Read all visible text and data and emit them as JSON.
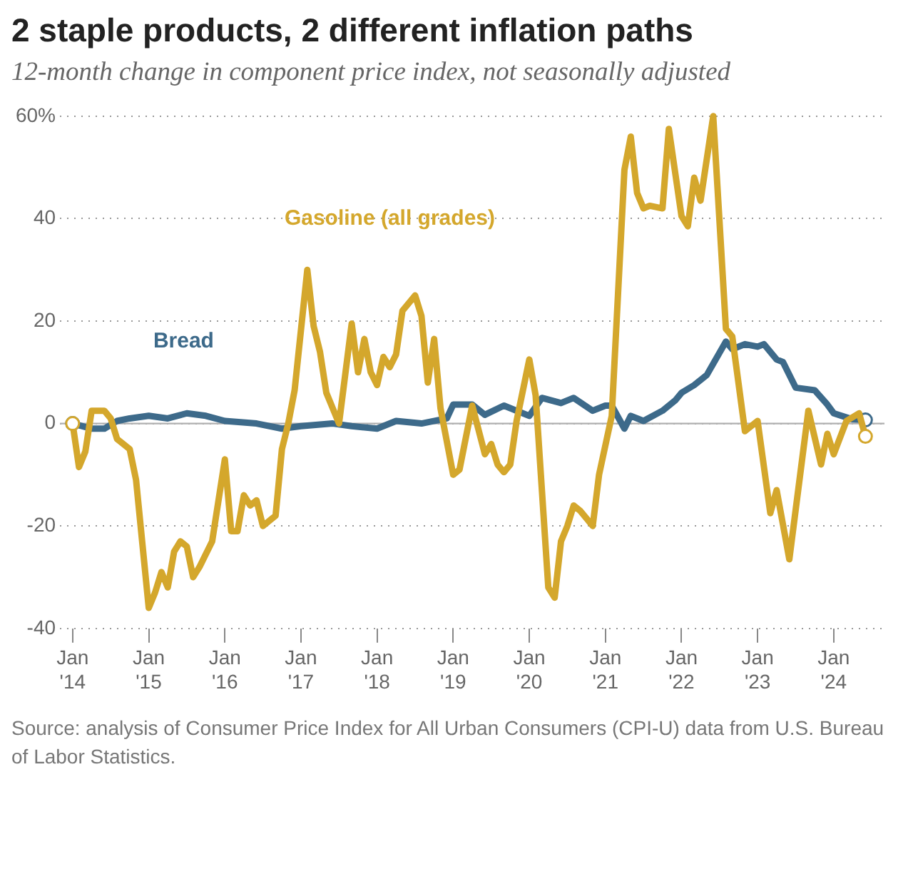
{
  "chart_data": {
    "type": "line",
    "title": "2 staple products, 2 different inflation paths",
    "subtitle": "12-month change in component price index, not seasonally adjusted",
    "annotations": [
      "Source: analysis of Consumer Price Index for All Urban Consumers (CPI-U) data from U.S. Bureau of Labor Statistics."
    ],
    "xlim": [
      "2013-11",
      "2024-09"
    ],
    "xticks": [
      {
        "value": "2014-01",
        "label": "Jan '14"
      },
      {
        "value": "2015-01",
        "label": "Jan '15"
      },
      {
        "value": "2016-01",
        "label": "Jan '16"
      },
      {
        "value": "2017-01",
        "label": "Jan '17"
      },
      {
        "value": "2018-01",
        "label": "Jan '18"
      },
      {
        "value": "2019-01",
        "label": "Jan '19"
      },
      {
        "value": "2020-01",
        "label": "Jan '20"
      },
      {
        "value": "2021-01",
        "label": "Jan '21"
      },
      {
        "value": "2022-01",
        "label": "Jan '22"
      },
      {
        "value": "2023-01",
        "label": "Jan '23"
      },
      {
        "value": "2024-01",
        "label": "Jan '24"
      }
    ],
    "ylim": [
      -40,
      60
    ],
    "yticks": [
      -40,
      -20,
      0,
      20,
      40,
      {
        "value": 60,
        "label": "60%"
      }
    ],
    "grid": "y",
    "legend": false,
    "line_style": "solid",
    "ref_lines": [
      {
        "axis": "y",
        "value": 0,
        "color": "#b0b0b0"
      }
    ],
    "series": [
      {
        "name": "Gasoline (all grades)",
        "color": "#d4a72c",
        "x": [
          "2014-01",
          "2014-02",
          "2014-03",
          "2014-04",
          "2014-06",
          "2014-07",
          "2014-08",
          "2014-10",
          "2014-11",
          "2015-01",
          "2015-02",
          "2015-03",
          "2015-04",
          "2015-05",
          "2015-06",
          "2015-07",
          "2015-08",
          "2015-09",
          "2015-11",
          "2016-01",
          "2016-02",
          "2016-03",
          "2016-04",
          "2016-05",
          "2016-06",
          "2016-07",
          "2016-09",
          "2016-10",
          "2016-11",
          "2016-12",
          "2017-02",
          "2017-03",
          "2017-04",
          "2017-05",
          "2017-07",
          "2017-09",
          "2017-10",
          "2017-11",
          "2017-12",
          "2018-01",
          "2018-02",
          "2018-03",
          "2018-04",
          "2018-05",
          "2018-07",
          "2018-08",
          "2018-09",
          "2018-10",
          "2018-11",
          "2019-01",
          "2019-02",
          "2019-04",
          "2019-06",
          "2019-07",
          "2019-08",
          "2019-09",
          "2019-10",
          "2019-11",
          "2020-01",
          "2020-02",
          "2020-04",
          "2020-05",
          "2020-06",
          "2020-07",
          "2020-08",
          "2020-09",
          "2020-11",
          "2020-12",
          "2021-02",
          "2021-04",
          "2021-05",
          "2021-06",
          "2021-07",
          "2021-08",
          "2021-10",
          "2021-11",
          "2022-01",
          "2022-02",
          "2022-03",
          "2022-04",
          "2022-06",
          "2022-08",
          "2022-09",
          "2022-11",
          "2023-01",
          "2023-03",
          "2023-04",
          "2023-06",
          "2023-09",
          "2023-11",
          "2023-12",
          "2024-01",
          "2024-03",
          "2024-05",
          "2024-06"
        ],
        "values": [
          0,
          -8.5,
          -5.5,
          2.5,
          2.5,
          1,
          -3,
          -5,
          -11,
          -36,
          -33,
          -29,
          -32,
          -25,
          -23,
          -24,
          -30,
          -28,
          -23,
          -7,
          -21,
          -21,
          -14,
          -16,
          -15,
          -20,
          -18,
          -5,
          0,
          6.5,
          30,
          19,
          14,
          6,
          0,
          19.5,
          10,
          16.5,
          10,
          7.5,
          13,
          11,
          13.5,
          22,
          25,
          21,
          8,
          16.5,
          3,
          -10,
          -9,
          3.5,
          -6,
          -4,
          -8,
          -9.5,
          -8,
          0.5,
          12.5,
          5.5,
          -32,
          -34,
          -23,
          -20,
          -16,
          -17,
          -20,
          -10,
          1.5,
          49.5,
          56,
          45,
          42,
          42.5,
          42,
          57.5,
          40.5,
          38.5,
          48,
          43.5,
          60,
          18.5,
          17,
          -1.5,
          0.5,
          -17.5,
          -13,
          -26.5,
          2.5,
          -8,
          -2,
          -6,
          0.5,
          2,
          -2.5
        ]
      },
      {
        "name": "Bread",
        "color": "#3d6a8a",
        "x": [
          "2014-01",
          "2014-04",
          "2014-06",
          "2014-08",
          "2014-10",
          "2015-01",
          "2015-04",
          "2015-07",
          "2015-10",
          "2016-01",
          "2016-06",
          "2016-10",
          "2017-01",
          "2017-06",
          "2017-09",
          "2018-01",
          "2018-04",
          "2018-08",
          "2018-12",
          "2019-01",
          "2019-04",
          "2019-06",
          "2019-09",
          "2020-01",
          "2020-03",
          "2020-06",
          "2020-08",
          "2020-11",
          "2021-01",
          "2021-02",
          "2021-04",
          "2021-05",
          "2021-07",
          "2021-10",
          "2021-12",
          "2022-01",
          "2022-03",
          "2022-05",
          "2022-08",
          "2022-09",
          "2022-11",
          "2023-01",
          "2023-02",
          "2023-04",
          "2023-05",
          "2023-07",
          "2023-10",
          "2023-12",
          "2024-01",
          "2024-04",
          "2024-06"
        ],
        "values": [
          0,
          -1,
          -1,
          0.5,
          1,
          1.5,
          1,
          2,
          1.5,
          0.5,
          0,
          -1,
          -0.5,
          0,
          -0.5,
          -1,
          0.5,
          0,
          1,
          3.7,
          3.7,
          1.7,
          3.5,
          1.5,
          5,
          4,
          5,
          2.5,
          3.5,
          3.5,
          -1,
          1.5,
          0.5,
          2.5,
          4.5,
          6,
          7.5,
          9.5,
          16,
          14.5,
          15.5,
          15,
          15.5,
          12.5,
          12,
          7,
          6.5,
          3.7,
          2,
          0.8,
          0.7
        ]
      }
    ]
  }
}
